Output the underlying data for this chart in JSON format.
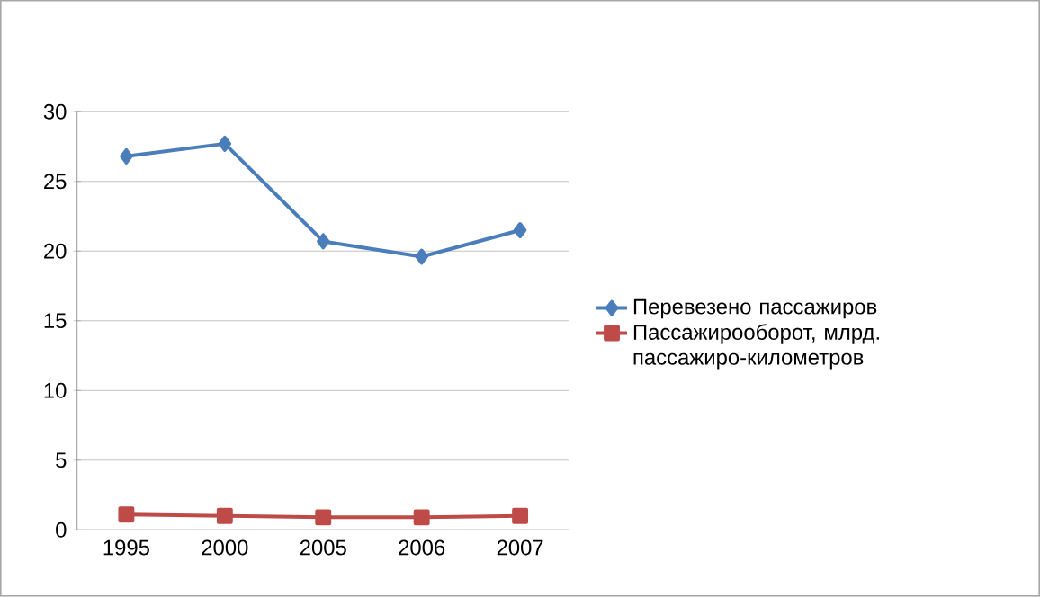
{
  "chart_data": {
    "type": "line",
    "categories": [
      "1995",
      "2000",
      "2005",
      "2006",
      "2007"
    ],
    "series": [
      {
        "name": "Перевезено пассажиров",
        "color": "#4a7ebb",
        "marker": "diamond",
        "values": [
          26.8,
          27.7,
          20.7,
          19.6,
          21.5
        ]
      },
      {
        "name": "Пассажирооборот, млрд. пассажиро-километров",
        "color": "#be4b48",
        "marker": "square",
        "values": [
          1.1,
          1.0,
          0.9,
          0.9,
          1.0
        ]
      }
    ],
    "ylim": [
      0,
      30
    ],
    "yticks": [
      0,
      5,
      10,
      15,
      20,
      25,
      30
    ],
    "grid": "y",
    "legend": "right",
    "line_style": "solid"
  }
}
